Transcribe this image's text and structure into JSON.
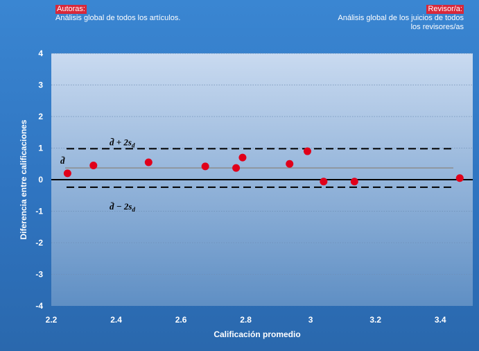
{
  "annotations": {
    "left_tag": "Autoras:",
    "left_text": "Análisis global de todos los  artículos.",
    "right_tag": "Revisor/a:",
    "right_text_line1": "Análisis global de los juicios de todos",
    "right_text_line2": "los revisores/as"
  },
  "colors": {
    "plot_bg_top": "#c9daf0",
    "plot_bg_bottom": "#5f8fc4",
    "points": "#e0001a",
    "mean_line": "#8c8c8c",
    "limit_lines": "#000000"
  },
  "chart_data": {
    "type": "scatter",
    "title": "",
    "xlabel": "Calificación promedio",
    "ylabel": "Diferencia entre calificaciones",
    "xlim": [
      2.2,
      3.5
    ],
    "ylim": [
      -4,
      4
    ],
    "xticks": [
      "2.2",
      "2.4",
      "2.6",
      "2.8",
      "3",
      "3.2",
      "3.4"
    ],
    "yticks": [
      "4",
      "3",
      "2",
      "1",
      "0",
      "-1",
      "-2",
      "-3",
      "-4"
    ],
    "grid": true,
    "points": [
      {
        "x": 2.25,
        "y": 0.2
      },
      {
        "x": 2.33,
        "y": 0.45
      },
      {
        "x": 2.5,
        "y": 0.55
      },
      {
        "x": 2.675,
        "y": 0.42
      },
      {
        "x": 2.77,
        "y": 0.37
      },
      {
        "x": 2.79,
        "y": 0.7
      },
      {
        "x": 2.935,
        "y": 0.5
      },
      {
        "x": 2.99,
        "y": 0.9
      },
      {
        "x": 3.04,
        "y": -0.06
      },
      {
        "x": 3.135,
        "y": -0.06
      },
      {
        "x": 3.46,
        "y": 0.05
      }
    ],
    "reference_lines": {
      "zero": 0,
      "mean": 0.37,
      "upper_limit": 0.98,
      "lower_limit": -0.24
    },
    "labels": {
      "mean": "d̄",
      "upper": "d̄ + 2s",
      "lower": "d̄ − 2s",
      "subscript": "d"
    }
  }
}
